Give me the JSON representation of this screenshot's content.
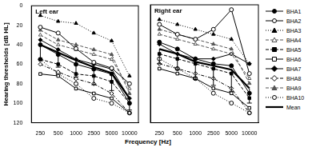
{
  "chart_data": [
    {
      "type": "line",
      "title": "Left ear",
      "x_label": "Frequency [Hz]",
      "y_label": "Hearing thresholds [dB HL]",
      "categories": [
        "250",
        "500",
        "1000",
        "2500",
        "5000",
        "10000"
      ],
      "ylim": [
        0,
        120
      ],
      "yticks": [
        0,
        20,
        40,
        60,
        80,
        100,
        120
      ],
      "grid": false,
      "legend": "right",
      "tick_labels": true,
      "series": [
        {
          "name": "BHA1",
          "color": "#000000",
          "marker": "circle",
          "line_style": "solid",
          "values": [
            40,
            50,
            60,
            65,
            70,
            100
          ]
        },
        {
          "name": "BHA2",
          "color": "#000000",
          "marker": "open_circle",
          "line_style": "solid",
          "values": [
            22,
            28,
            44,
            58,
            64,
            80
          ]
        },
        {
          "name": "BHA3",
          "color": "#000000",
          "marker": "triangle",
          "line_style": "dotted",
          "values": [
            10,
            16,
            18,
            28,
            36,
            72
          ]
        },
        {
          "name": "BHA4",
          "color": "#555555",
          "marker": "open_triangle",
          "line_style": "dashed",
          "values": [
            30,
            40,
            45,
            50,
            55,
            85
          ]
        },
        {
          "name": "BHA5",
          "color": "#000000",
          "marker": "square",
          "line_style": "dashed",
          "values": [
            55,
            60,
            70,
            72,
            78,
            100
          ]
        },
        {
          "name": "BHA6",
          "color": "#000000",
          "marker": "open_square",
          "line_style": "solid",
          "values": [
            70,
            72,
            85,
            90,
            95,
            110
          ]
        },
        {
          "name": "BHA7",
          "color": "#000000",
          "marker": "diamond",
          "line_style": "solid",
          "values": [
            35,
            45,
            55,
            60,
            65,
            95
          ]
        },
        {
          "name": "BHA8",
          "color": "#000000",
          "marker": "open_diamond",
          "line_style": "dashdot",
          "values": [
            60,
            68,
            75,
            80,
            90,
            110
          ]
        },
        {
          "name": "BHA9",
          "color": "#555555",
          "marker": "triangle",
          "line_style": "dashed",
          "values": [
            25,
            35,
            40,
            45,
            50,
            90
          ]
        },
        {
          "name": "BHA10",
          "color": "#000000",
          "marker": "open_circle",
          "line_style": "dotted",
          "values": [
            55,
            70,
            80,
            95,
            100,
            110
          ]
        },
        {
          "name": "Mean",
          "color": "#000000",
          "marker": "none",
          "line_style": "solid",
          "values": [
            40,
            48,
            56,
            63,
            69,
            95
          ],
          "errors": [
            15,
            15,
            17,
            18,
            18,
            12
          ]
        }
      ]
    },
    {
      "type": "line",
      "title": "Right ear",
      "categories": [
        "250",
        "500",
        "1000",
        "2500",
        "5000",
        "10000"
      ],
      "ylim": [
        0,
        120
      ],
      "yticks": [
        0,
        20,
        40,
        60,
        80,
        100,
        120
      ],
      "grid": false,
      "tick_labels": "x",
      "series": [
        {
          "name": "BHA1",
          "color": "#000000",
          "marker": "circle",
          "line_style": "solid",
          "values": [
            38,
            45,
            55,
            60,
            62,
            90
          ]
        },
        {
          "name": "BHA2",
          "color": "#000000",
          "marker": "open_circle",
          "line_style": "solid",
          "values": [
            20,
            30,
            35,
            25,
            5,
            70
          ]
        },
        {
          "name": "BHA3",
          "color": "#000000",
          "marker": "triangle",
          "line_style": "dotted",
          "values": [
            15,
            20,
            25,
            30,
            35,
            60
          ]
        },
        {
          "name": "BHA4",
          "color": "#555555",
          "marker": "open_triangle",
          "line_style": "dashed",
          "values": [
            30,
            35,
            40,
            45,
            50,
            75
          ]
        },
        {
          "name": "BHA5",
          "color": "#000000",
          "marker": "square",
          "line_style": "dashed",
          "values": [
            50,
            55,
            60,
            65,
            70,
            95
          ]
        },
        {
          "name": "BHA6",
          "color": "#000000",
          "marker": "open_square",
          "line_style": "solid",
          "values": [
            65,
            70,
            75,
            85,
            90,
            105
          ]
        },
        {
          "name": "BHA7",
          "color": "#000000",
          "marker": "diamond",
          "line_style": "solid",
          "values": [
            40,
            50,
            55,
            55,
            50,
            60
          ]
        },
        {
          "name": "BHA8",
          "color": "#000000",
          "marker": "open_diamond",
          "line_style": "dashdot",
          "values": [
            60,
            65,
            70,
            75,
            85,
            110
          ]
        },
        {
          "name": "BHA9",
          "color": "#555555",
          "marker": "triangle",
          "line_style": "dashed",
          "values": [
            25,
            30,
            35,
            40,
            45,
            80
          ]
        },
        {
          "name": "BHA10",
          "color": "#000000",
          "marker": "open_circle",
          "line_style": "dotted",
          "values": [
            55,
            65,
            75,
            90,
            100,
            110
          ]
        },
        {
          "name": "Mean",
          "color": "#000000",
          "marker": "none",
          "line_style": "solid",
          "values": [
            45,
            50,
            58,
            62,
            66,
            85
          ],
          "errors": [
            15,
            16,
            18,
            20,
            22,
            15
          ]
        }
      ]
    }
  ]
}
